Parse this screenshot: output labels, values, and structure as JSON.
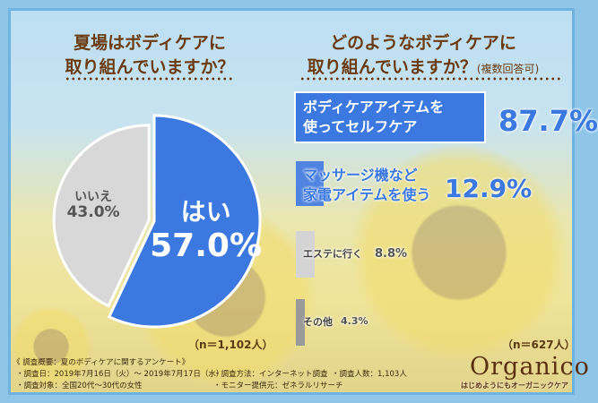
{
  "left": {
    "title_line1": "夏場はボディケアに",
    "title_line2": "取り組んでいますか？",
    "n": "（n＝1,102人）"
  },
  "right": {
    "title_line1": "どのようなボディケアに",
    "title_line2": "取り組んでいますか？",
    "title_note": "(複数回答可)",
    "n": "（n＝627人）"
  },
  "chart_data": [
    {
      "type": "pie",
      "categories": [
        "はい",
        "いいえ"
      ],
      "values": [
        57.0,
        43.0
      ],
      "labels": [
        "57.0%",
        "43.0%"
      ],
      "colors": [
        "#3b78e0",
        "#d8d8d8"
      ]
    },
    {
      "type": "bar",
      "orientation": "horizontal",
      "categories": [
        "ボディケアアイテムを使ってセルフケア",
        "マッサージ機など家電アイテムを使う",
        "エステに行く",
        "その他"
      ],
      "label_lines": [
        [
          "ボディケアアイテムを",
          "使ってセルフケア"
        ],
        [
          "マッサージ機など",
          "家電アイテムを使う"
        ],
        [
          "エステに行く"
        ],
        [
          "その他"
        ]
      ],
      "values": [
        87.7,
        12.9,
        8.8,
        4.3
      ],
      "labels": [
        "87.7%",
        "12.9%",
        "8.8%",
        "4.3%"
      ],
      "colors": [
        "#3b78e0",
        "#4f84e0",
        "#d4d4d4",
        "#9a9a9a"
      ]
    }
  ],
  "footer": {
    "heading": "《 調査概要：夏のボディケアに関するアンケート》",
    "date": "・調査日：2019年7月16日（火）～ 2019年7月17日（水）",
    "method": "・調査方法：インターネット調査",
    "count": "・調査人数：1,103人",
    "target": "・調査対象：全国20代～30代の女性",
    "provider": "・モニター提供元：ゼネラルリサーチ"
  },
  "logo": {
    "name": "Organico",
    "tagline": "はじめようにもオーガニックケア"
  }
}
